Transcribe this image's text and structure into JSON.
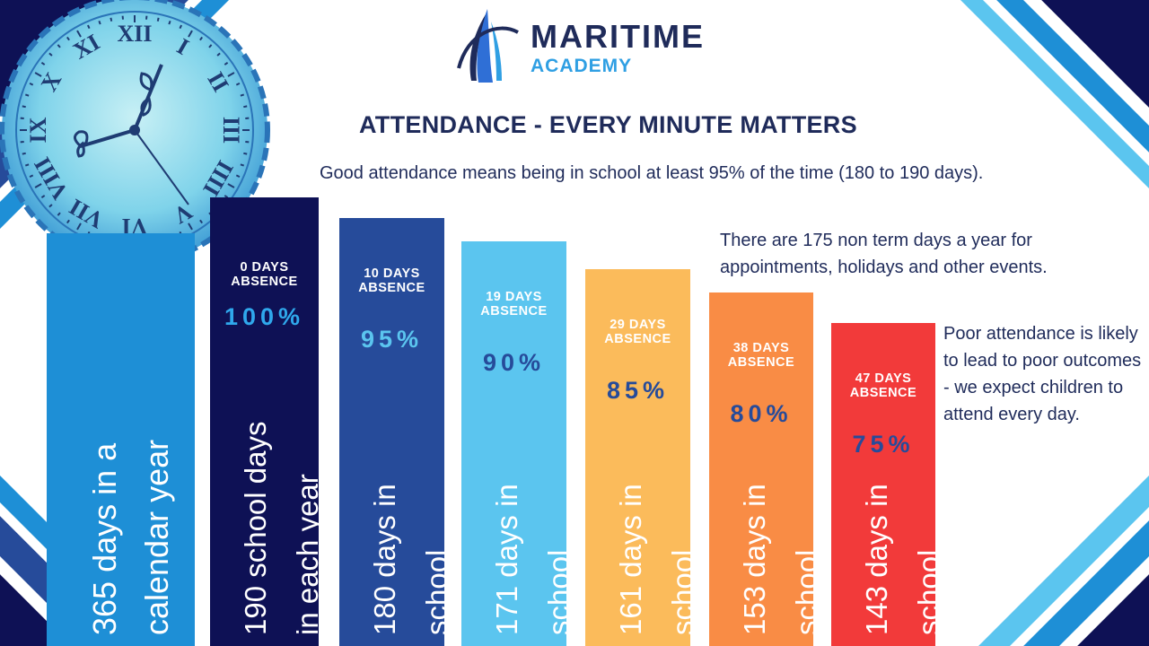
{
  "logo": {
    "name": "MARITIME",
    "sub": "ACADEMY"
  },
  "headline": "ATTENDANCE - EVERY MINUTE MATTERS",
  "subline": "Good attendance means being in school at least 95% of the time (180 to 190 days).",
  "note_nonterm": "There are 175 non term days a year for appointments, holidays and other events.",
  "note_poor": "Poor attendance is likely to lead to poor outcomes - we expect children to attend every day.",
  "colors": {
    "navy": "#0e1155",
    "text": "#1f2b5a",
    "calendar": "#1e8fd6",
    "school": "#0e1155",
    "days180": "#264b9a",
    "days171": "#5bc5ef",
    "days161": "#fbbb5b",
    "days153": "#f98c45",
    "days143": "#f23a3a"
  },
  "chart_data": {
    "type": "bar",
    "title": "ATTENDANCE - EVERY MINUTE MATTERS",
    "categories": [
      "365 days in a calendar year",
      "190 school days in each year",
      "180 days in school",
      "171 days in school",
      "161 days in school",
      "153 days in school",
      "143 days in school"
    ],
    "values": [
      365,
      190,
      180,
      171,
      161,
      153,
      143
    ],
    "absence_days": [
      null,
      0,
      10,
      19,
      29,
      38,
      47
    ],
    "attendance_pct": [
      null,
      100,
      95,
      90,
      85,
      80,
      75
    ],
    "bars": [
      {
        "line1": "365 days in a",
        "line2": "calendar year",
        "absence": "",
        "pct": "",
        "color": "#1e8fd6",
        "pct_color": "#ffffff"
      },
      {
        "line1": "190 school days",
        "line2": "in each year",
        "absence": "0 DAYS\nABSENCE",
        "pct": "100%",
        "color": "#0e1155",
        "pct_color": "#2fa8ec"
      },
      {
        "line1": "180 days in",
        "line2": "school",
        "absence": "10 DAYS\nABSENCE",
        "pct": "95%",
        "color": "#264b9a",
        "pct_color": "#5bc5ef"
      },
      {
        "line1": "171 days in",
        "line2": "school",
        "absence": "19 DAYS\nABSENCE",
        "pct": "90%",
        "color": "#5bc5ef",
        "pct_color": "#264b9a"
      },
      {
        "line1": "161 days in",
        "line2": "school",
        "absence": "29 DAYS\nABSENCE",
        "pct": "85%",
        "color": "#fbbb5b",
        "pct_color": "#264b9a"
      },
      {
        "line1": "153 days in",
        "line2": "school",
        "absence": "38 DAYS\nABSENCE",
        "pct": "80%",
        "color": "#f98c45",
        "pct_color": "#264b9a"
      },
      {
        "line1": "143 days in",
        "line2": "school",
        "absence": "47 DAYS\nABSENCE",
        "pct": "75%",
        "color": "#f23a3a",
        "pct_color": "#264b9a"
      }
    ]
  }
}
